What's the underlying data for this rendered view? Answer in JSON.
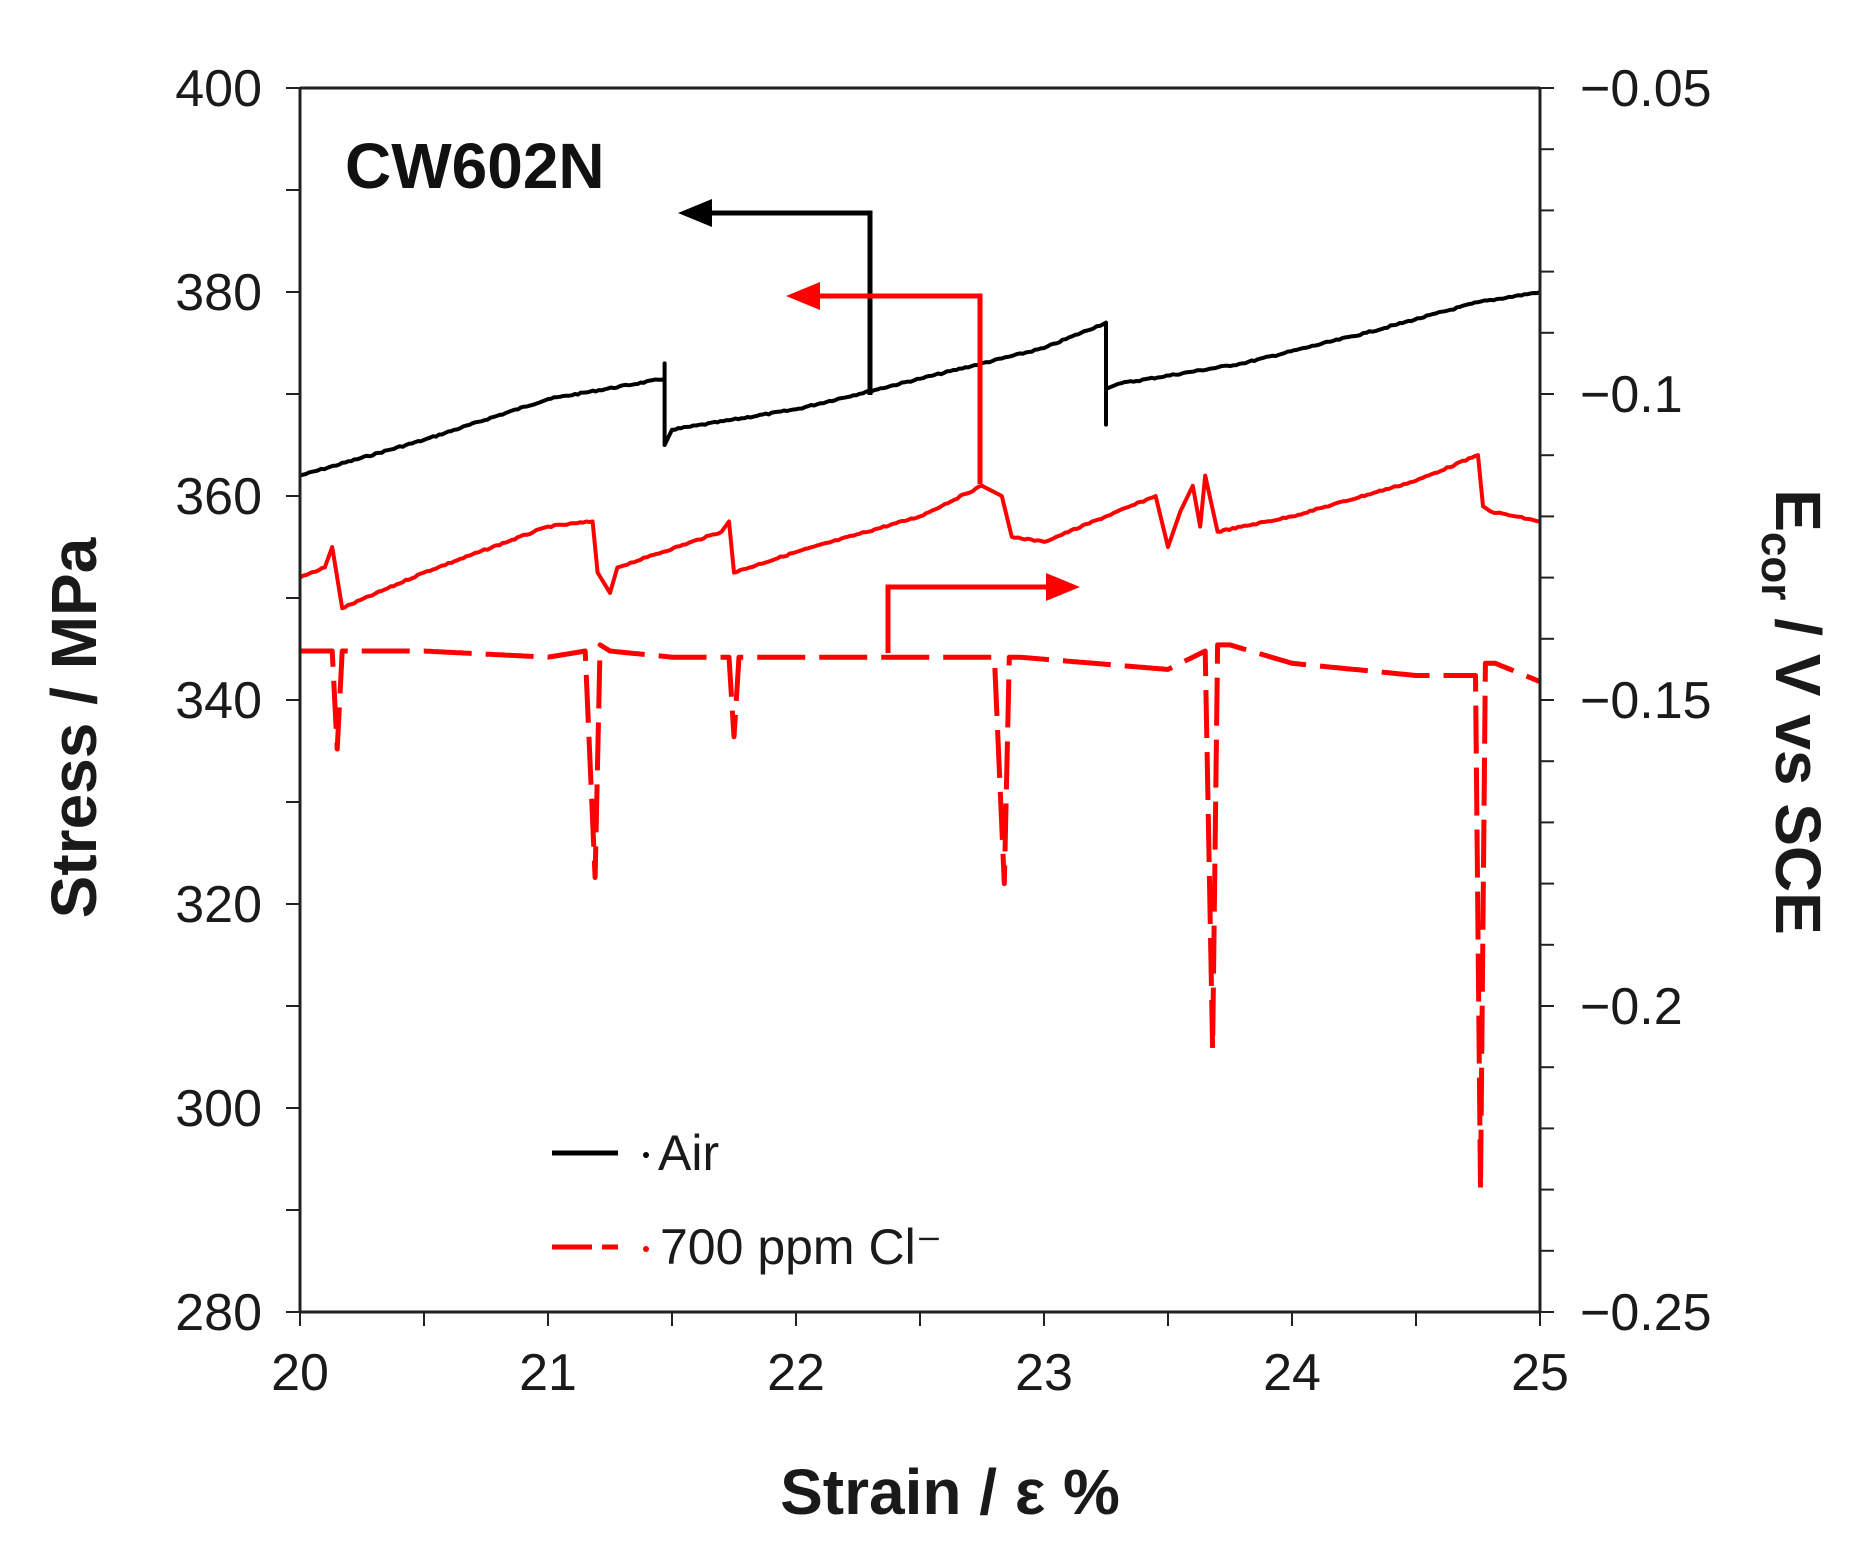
{
  "chart_data": {
    "type": "line",
    "title": "CW602N",
    "xlabel": "Strain / ε %",
    "ylabel": "Stress / MPa",
    "y2label_main": "E",
    "y2label_sub": "cor",
    "y2label_rest": " / V vs SCE",
    "xlim": [
      20,
      25
    ],
    "ylim": [
      280,
      400
    ],
    "y2lim": [
      -0.25,
      -0.05
    ],
    "x_ticks": [
      20,
      21,
      22,
      23,
      24,
      25
    ],
    "x_tick_labels": [
      "20",
      "21",
      "22",
      "23",
      "24",
      "25"
    ],
    "y_ticks": [
      280,
      300,
      320,
      340,
      360,
      380,
      400
    ],
    "y_tick_labels": [
      "280",
      "300",
      "320",
      "340",
      "360",
      "380",
      "400"
    ],
    "y2_ticks": [
      -0.25,
      -0.2,
      -0.15,
      -0.1,
      -0.05
    ],
    "y2_tick_labels": [
      "−0.25",
      "−0.2",
      "−0.15",
      "−0.1",
      "−0.05"
    ],
    "x_minor_step": 0.5,
    "y_minor_step": 10,
    "y2_minor_step": 0.01,
    "legend": [
      {
        "label": "Air",
        "color": "#000000",
        "dash": false
      },
      {
        "label": "700 ppm Cl⁻",
        "color": "#ff0000",
        "dash": true
      }
    ],
    "series": [
      {
        "name": "Air",
        "axis": "left",
        "color": "#000000",
        "style": "solid",
        "x": [
          20.0,
          20.5,
          21.0,
          21.47,
          21.47,
          21.47,
          21.5,
          22.0,
          22.5,
          23.0,
          23.25,
          23.25,
          23.25,
          23.3,
          23.8,
          24.3,
          24.75,
          25.0
        ],
        "y": [
          362,
          365.5,
          369.5,
          371.5,
          373,
          365,
          366.5,
          368.5,
          371.5,
          374.5,
          377,
          367,
          370.5,
          371,
          373,
          376,
          379,
          380
        ]
      },
      {
        "name": "700 ppm Cl⁻ (stress)",
        "axis": "left",
        "color": "#ff0000",
        "style": "solid",
        "x": [
          20.0,
          20.1,
          20.13,
          20.17,
          20.5,
          21.0,
          21.18,
          21.2,
          21.25,
          21.28,
          21.4,
          21.7,
          21.73,
          21.75,
          22.0,
          22.5,
          22.75,
          22.83,
          22.87,
          23.0,
          23.45,
          23.5,
          23.55,
          23.6,
          23.63,
          23.65,
          23.7,
          24.0,
          24.5,
          24.75,
          24.77,
          24.8,
          25.0
        ],
        "y": [
          352,
          353,
          355,
          349,
          352.5,
          357,
          357.5,
          352.5,
          350.5,
          353,
          354,
          356.5,
          357.5,
          352.5,
          354.5,
          358,
          361,
          360,
          356,
          355.5,
          360,
          355,
          358.5,
          361,
          357,
          362,
          356.5,
          358,
          361.5,
          364,
          359,
          358.5,
          357.5
        ]
      },
      {
        "name": "700 ppm Cl⁻ (Ecor)",
        "axis": "right",
        "color": "#ff0000",
        "style": "dashed",
        "x": [
          20.0,
          20.13,
          20.15,
          20.17,
          20.5,
          21.0,
          21.15,
          21.19,
          21.21,
          21.25,
          21.5,
          21.73,
          21.75,
          21.77,
          22.0,
          22.5,
          22.8,
          22.84,
          22.86,
          22.9,
          23.5,
          23.65,
          23.68,
          23.7,
          23.75,
          24.0,
          24.5,
          24.74,
          24.76,
          24.78,
          24.82,
          25.0
        ],
        "y": [
          -0.142,
          -0.142,
          -0.158,
          -0.142,
          -0.142,
          -0.143,
          -0.142,
          -0.179,
          -0.141,
          -0.142,
          -0.143,
          -0.143,
          -0.156,
          -0.143,
          -0.143,
          -0.143,
          -0.143,
          -0.18,
          -0.143,
          -0.143,
          -0.145,
          -0.142,
          -0.207,
          -0.141,
          -0.141,
          -0.144,
          -0.146,
          -0.146,
          -0.23,
          -0.144,
          -0.144,
          -0.147
        ]
      }
    ],
    "annotations": [
      {
        "label": "arrow-to-left-axis",
        "color": "#000000"
      },
      {
        "label": "arrow-to-left-axis",
        "color": "#ff0000"
      },
      {
        "label": "arrow-to-right-axis",
        "color": "#ff0000"
      }
    ]
  }
}
